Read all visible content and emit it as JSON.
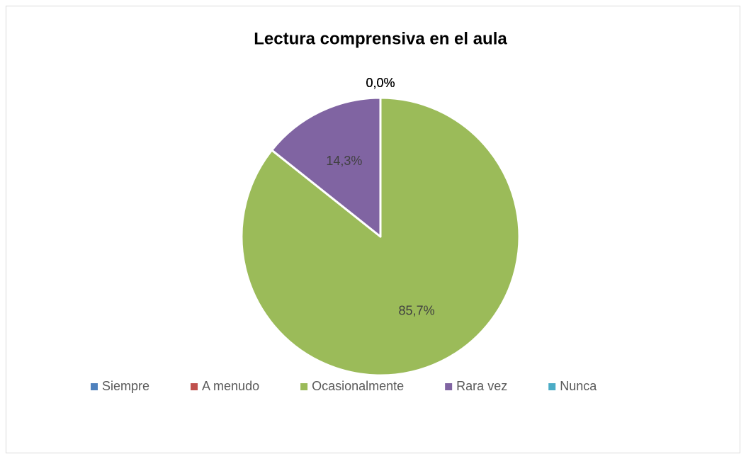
{
  "chart_data": {
    "type": "pie",
    "title": "Lectura comprensiva en el aula",
    "categories": [
      "Siempre",
      "A menudo",
      "Ocasionalmente",
      "Rara vez",
      "Nunca"
    ],
    "values": [
      0,
      0,
      85.7,
      14.3,
      0
    ],
    "value_labels": [
      "0,0%",
      "0,0%",
      "85,7%",
      "14,3%",
      "0,0%"
    ],
    "colors": [
      "#4f81bd",
      "#c0504d",
      "#9bbb59",
      "#8064a2",
      "#4bacc6"
    ],
    "legend": "bottom"
  }
}
